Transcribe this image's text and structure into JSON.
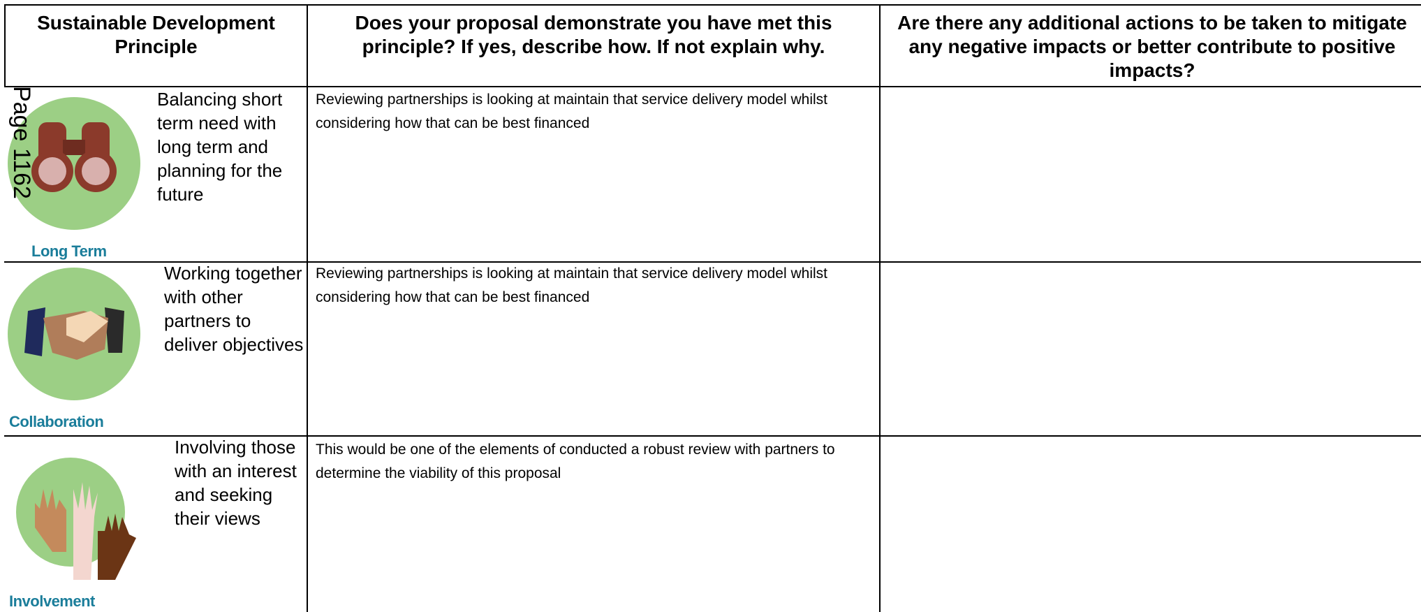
{
  "page_label": "Page 1162",
  "table": {
    "headers": [
      "Sustainable Development Principle",
      "Does your proposal demonstrate you have met this principle?  If yes, describe how.  If not explain why.",
      "Are there any additional actions to be taken to mitigate any negative impacts or better contribute to positive impacts?"
    ],
    "rows": [
      {
        "principle": "Long Term",
        "description": "Balancing short term need with long term and planning for the future",
        "response": "Reviewing partnerships is looking at maintain that service delivery model whilst considering how that can be best financed"
      },
      {
        "principle": "Collaboration",
        "description": "Working together with other partners to deliver objectives",
        "response": "Reviewing partnerships is looking at maintain that service delivery model whilst considering how that can be best financed"
      },
      {
        "principle": "Involvement",
        "description": "Involving those with an interest and seeking their views",
        "response": "This would be one of the elements of conducted a robust review with partners to determine the viability of this proposal"
      }
    ]
  }
}
